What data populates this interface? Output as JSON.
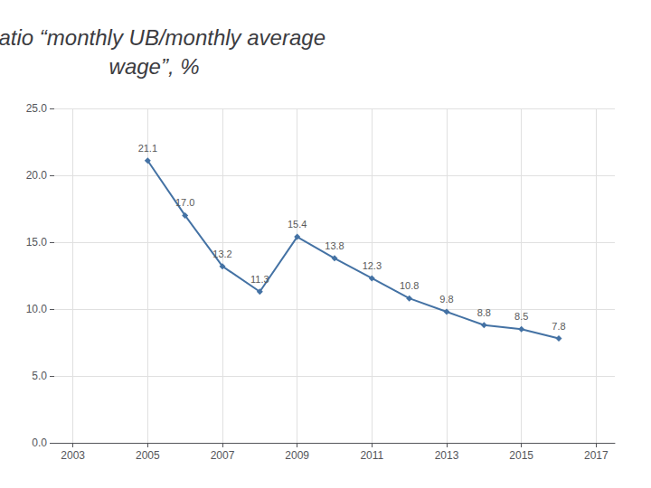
{
  "chart_data": {
    "type": "line",
    "title": "Ratio “monthly UB/monthly average\nwage”, %",
    "x": [
      2005,
      2006,
      2007,
      2008,
      2009,
      2010,
      2011,
      2012,
      2013,
      2014,
      2015,
      2016
    ],
    "values": [
      21.1,
      17.0,
      13.2,
      11.3,
      15.4,
      13.8,
      12.3,
      10.8,
      9.8,
      8.8,
      8.5,
      7.8
    ],
    "value_labels": [
      "21.1",
      "17.0",
      "13.2",
      "11.3",
      "15.4",
      "13.8",
      "12.3",
      "10.8",
      "9.8",
      "8.8",
      "8.5",
      "7.8"
    ],
    "xlim": [
      2002.5,
      2017.5
    ],
    "xticks": [
      2003,
      2005,
      2007,
      2009,
      2011,
      2013,
      2015,
      2017
    ],
    "ylim": [
      0.0,
      25.0
    ],
    "yticks": [
      {
        "value": 0,
        "label": "0.0"
      },
      {
        "value": 5,
        "label": "5.0"
      },
      {
        "value": 10,
        "label": "10.0"
      },
      {
        "value": 15,
        "label": "15.0"
      },
      {
        "value": 20,
        "label": "20.0"
      },
      {
        "value": 25,
        "label": "25.0"
      }
    ],
    "grid": true,
    "data_labels": true,
    "color": "#4472a4",
    "marker": "diamond"
  }
}
